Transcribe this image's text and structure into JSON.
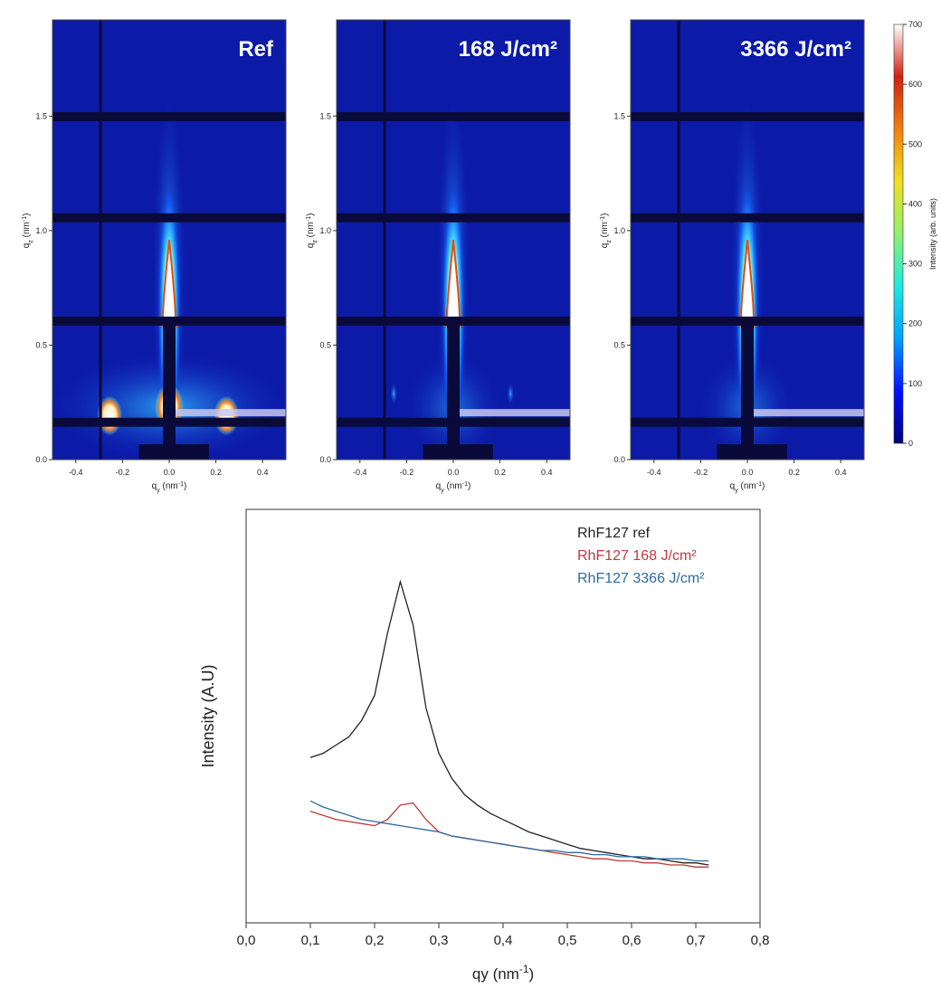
{
  "chart_data": [
    {
      "type": "heatmap",
      "title": "Ref",
      "xlabel": [
        "q",
        "y",
        " (nm",
        "-1",
        ")"
      ],
      "ylabel": [
        "q",
        "z",
        " (nm",
        "-1",
        ")"
      ],
      "xlim": [
        -0.5,
        0.5
      ],
      "xticks": [
        -0.4,
        -0.2,
        {
          "value": 0,
          "label": "0.0"
        },
        0.2,
        0.4
      ],
      "ylim": [
        0,
        1.92
      ],
      "yticks": [
        {
          "value": 0,
          "label": "0.0"
        },
        0.5,
        {
          "value": 1,
          "label": "1.0"
        },
        1.5
      ]
    },
    {
      "type": "heatmap",
      "title": "168 J/cm²",
      "xlabel": [
        "q",
        "y",
        " (nm",
        "-1",
        ")"
      ],
      "ylabel": [
        "q",
        "z",
        " (nm",
        "-1",
        ")"
      ],
      "xlim": [
        -0.5,
        0.5
      ],
      "xticks": [
        -0.4,
        -0.2,
        {
          "value": 0,
          "label": "0.0"
        },
        0.2,
        0.4
      ],
      "ylim": [
        0,
        1.92
      ],
      "yticks": [
        {
          "value": 0,
          "label": "0.0"
        },
        0.5,
        {
          "value": 1,
          "label": "1.0"
        },
        1.5
      ]
    },
    {
      "type": "heatmap",
      "title": "3366 J/cm²",
      "xlabel": [
        "q",
        "y",
        " (nm",
        "-1",
        ")"
      ],
      "ylabel": [
        "q",
        "z",
        " (nm",
        "-1",
        ")"
      ],
      "xlim": [
        -0.5,
        0.5
      ],
      "xticks": [
        -0.4,
        -0.2,
        {
          "value": 0,
          "label": "0.0"
        },
        0.2,
        0.4
      ],
      "ylim": [
        0,
        1.92
      ],
      "yticks": [
        {
          "value": 0,
          "label": "0.0"
        },
        0.5,
        {
          "value": 1,
          "label": "1.0"
        },
        1.5
      ]
    },
    {
      "type": "colorbar",
      "label": "Intensity (arb. units)",
      "ylim": [
        0,
        700
      ],
      "yticks": [
        0,
        100,
        200,
        300,
        400,
        500,
        600,
        700
      ],
      "colors": [
        "#00007a",
        "#0010ff",
        "#00a0ff",
        "#20e8e0",
        "#90f070",
        "#f0e020",
        "#f08010",
        "#d02010",
        "#ffffff"
      ]
    },
    {
      "type": "line",
      "xlabel": [
        "qy (nm",
        "-1",
        ")"
      ],
      "ylabel": "Intensity (A.U)",
      "xlim": [
        0,
        0.8
      ],
      "ylim": [
        0,
        100
      ],
      "xticks": [
        {
          "value": 0,
          "label": "0,0"
        },
        {
          "value": 0.1,
          "label": "0,1"
        },
        {
          "value": 0.2,
          "label": "0,2"
        },
        {
          "value": 0.3,
          "label": "0,3"
        },
        {
          "value": 0.4,
          "label": "0,4"
        },
        {
          "value": 0.5,
          "label": "0,5"
        },
        {
          "value": 0.6,
          "label": "0,6"
        },
        {
          "value": 0.7,
          "label": "0,7"
        },
        {
          "value": 0.8,
          "label": "0,8"
        }
      ],
      "x": [
        0.1,
        0.12,
        0.14,
        0.16,
        0.18,
        0.2,
        0.22,
        0.24,
        0.26,
        0.28,
        0.3,
        0.32,
        0.34,
        0.36,
        0.38,
        0.4,
        0.42,
        0.44,
        0.46,
        0.48,
        0.5,
        0.52,
        0.54,
        0.56,
        0.58,
        0.6,
        0.62,
        0.64,
        0.66,
        0.68,
        0.7,
        0.72
      ],
      "series": [
        {
          "name": "RhF127 ref",
          "color": "#222222",
          "values": [
            40,
            41,
            43,
            45,
            49,
            55,
            70,
            82.5,
            72,
            52,
            41,
            35,
            31,
            28.5,
            26.5,
            25,
            23.5,
            22,
            21,
            20,
            19,
            18,
            17.5,
            17,
            16.5,
            16,
            15.5,
            15.5,
            15,
            14.5,
            14.5,
            14
          ]
        },
        {
          "name": "RhF127 168 J/cm²",
          "color": "#c0393b",
          "values": [
            27,
            26,
            25,
            24.5,
            24,
            23.5,
            25,
            28.5,
            29,
            25,
            22,
            21,
            20.5,
            20,
            19.5,
            19,
            18.5,
            18,
            17.5,
            17,
            16.5,
            16,
            15.5,
            15.5,
            15,
            15,
            14.5,
            14.5,
            14,
            14,
            13.5,
            13.5
          ]
        },
        {
          "name": "RhF127 3366 J/cm²",
          "color": "#2d6a9f",
          "values": [
            29.5,
            28,
            27,
            26,
            25,
            24.5,
            24,
            23.5,
            23,
            22.5,
            22,
            21,
            20.5,
            20,
            19.5,
            19,
            18.5,
            18,
            17.5,
            17.5,
            17,
            17,
            16.5,
            16.5,
            16,
            16,
            16,
            15.5,
            15.5,
            15.5,
            15,
            15
          ]
        }
      ]
    }
  ]
}
